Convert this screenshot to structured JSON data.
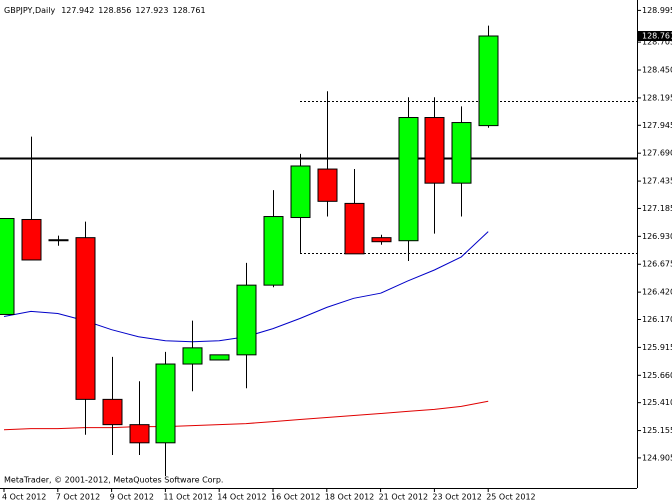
{
  "chart_data": {
    "type": "candlestick",
    "title": "GBPJPY,Daily",
    "footer": "MetaTrader, © 2001-2012, MetaQuotes Software Corp.",
    "categories": [
      "4 Oct 2012",
      null,
      "7 Oct 2012",
      null,
      "9 Oct 2012",
      null,
      "11 Oct 2012",
      null,
      "14 Oct 2012",
      null,
      "16 Oct 2012",
      null,
      "18 Oct 2012",
      null,
      "21 Oct 2012",
      null,
      "23 Oct 2012",
      null,
      "25 Oct 2012"
    ],
    "candles": [
      {
        "open": 126.216,
        "high": 127.093,
        "low": 126.216,
        "close": 127.093
      },
      {
        "open": 127.084,
        "high": 127.841,
        "low": 126.714,
        "close": 126.714
      },
      {
        "open": 126.89,
        "high": 126.936,
        "low": 126.844,
        "close": 126.899
      },
      {
        "open": 126.918,
        "high": 127.065,
        "low": 125.117,
        "close": 125.44
      },
      {
        "open": 125.44,
        "high": 125.828,
        "low": 124.932,
        "close": 125.209
      },
      {
        "open": 125.209,
        "high": 125.606,
        "low": 124.932,
        "close": 125.043
      },
      {
        "open": 125.043,
        "high": 125.874,
        "low": 124.739,
        "close": 125.763
      },
      {
        "open": 125.763,
        "high": 126.16,
        "low": 125.514,
        "close": 125.911
      },
      {
        "open": 125.8,
        "high": 125.847,
        "low": 125.8,
        "close": 125.847
      },
      {
        "open": 125.847,
        "high": 126.687,
        "low": 125.542,
        "close": 126.484
      },
      {
        "open": 126.484,
        "high": 127.352,
        "low": 126.465,
        "close": 127.111
      },
      {
        "open": 127.102,
        "high": 127.684,
        "low": 126.779,
        "close": 127.573
      },
      {
        "open": 127.545,
        "high": 128.256,
        "low": 127.111,
        "close": 127.25
      },
      {
        "open": 127.231,
        "high": 127.545,
        "low": 126.77,
        "close": 126.77
      },
      {
        "open": 126.918,
        "high": 126.945,
        "low": 126.853,
        "close": 126.881
      },
      {
        "open": 126.89,
        "high": 128.201,
        "low": 126.705,
        "close": 128.016
      },
      {
        "open": 128.016,
        "high": 128.201,
        "low": 126.955,
        "close": 127.416
      },
      {
        "open": 127.416,
        "high": 128.118,
        "low": 127.111,
        "close": 127.97
      },
      {
        "open": 127.942,
        "high": 128.856,
        "low": 127.923,
        "close": 128.761
      }
    ],
    "bull_color": "#00ff00",
    "bear_color": "#ff0000",
    "series": [
      {
        "color": "#0000c8",
        "values": [
          126.197,
          126.244,
          126.225,
          126.16,
          126.077,
          126.013,
          125.976,
          125.967,
          125.976,
          126.013,
          126.087,
          126.179,
          126.281,
          126.364,
          126.41,
          126.521,
          126.622,
          126.742,
          126.973
        ]
      },
      {
        "color": "#e00000",
        "values": [
          125.163,
          125.173,
          125.173,
          125.182,
          125.182,
          125.191,
          125.191,
          125.2,
          125.209,
          125.219,
          125.237,
          125.256,
          125.274,
          125.293,
          125.311,
          125.33,
          125.348,
          125.376,
          125.422
        ]
      }
    ],
    "hlines": [
      {
        "value": 127.647,
        "style": "solid"
      },
      {
        "value": 128.164,
        "style": "dotted"
      },
      {
        "value": 126.779,
        "style": "dotted"
      }
    ],
    "ylim": [
      124.63,
      129.09
    ],
    "yticks": [
      128.995,
      128.705,
      {
        "value": 128.45,
        "label": "128.450"
      },
      128.195,
      127.945,
      {
        "value": 127.69,
        "label": "127.690"
      },
      127.435,
      127.185,
      {
        "value": 126.93,
        "label": "126.930"
      },
      126.675,
      {
        "value": 126.42,
        "label": "126.420"
      },
      {
        "value": 126.17,
        "label": "126.170"
      },
      125.915,
      {
        "value": 125.66,
        "label": "125.660"
      },
      {
        "value": 125.41,
        "label": "125.410"
      },
      125.155,
      124.905
    ]
  }
}
